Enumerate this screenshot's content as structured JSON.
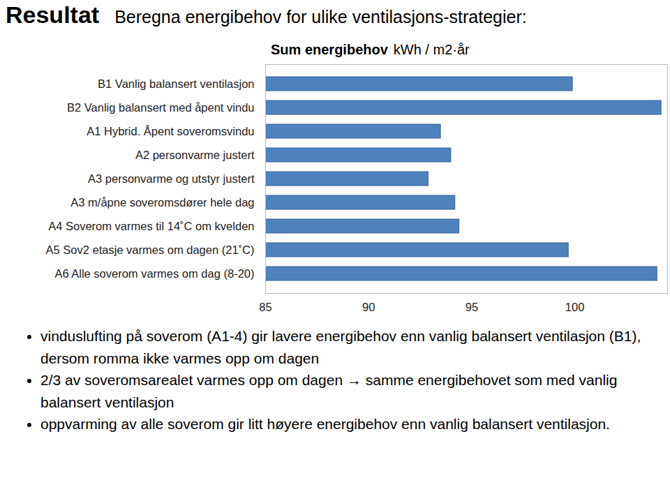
{
  "chart_data": {
    "type": "bar",
    "orientation": "horizontal",
    "title": "Resultat",
    "subtitle": "Beregna energibehov for ulike ventilasjons-strategier:",
    "xlabel": "Sum energibehov",
    "unit": "kWh / m2·år",
    "categories": [
      "B1 Vanlig balansert ventilasjon",
      "B2 Vanlig balansert med åpent vindu",
      "A1 Hybrid. Åpent soveromsvindu",
      "A2 personvarme justert",
      "A3 personvarme og utstyr justert",
      "A3 m/åpne soveromsdører hele dag",
      "A4 Soverom varmes til 14˚C om kvelden",
      "A5 Sov2 etasje varmes om dagen (21˚C)",
      "A6 Alle soverom varmes om dag (8-20)"
    ],
    "values": [
      99.9,
      104.2,
      93.5,
      94.0,
      92.9,
      94.2,
      94.4,
      99.7,
      104.0
    ],
    "color": "#4f81bd",
    "xlim": [
      85,
      104.5
    ],
    "xticks": [
      85,
      90,
      95,
      100
    ],
    "grid": false,
    "annotations": [
      "vinduslufting på soverom (A1-4) gir lavere energibehov enn vanlig balansert ventilasjon (B1), dersom romma ikke varmes opp om dagen",
      "2/3 av soveromsarealet varmes opp om dagen → samme energibehovet som med vanlig balansert ventilasjon",
      "oppvarming av alle soverom gir litt høyere energibehov enn vanlig balansert ventilasjon."
    ]
  }
}
